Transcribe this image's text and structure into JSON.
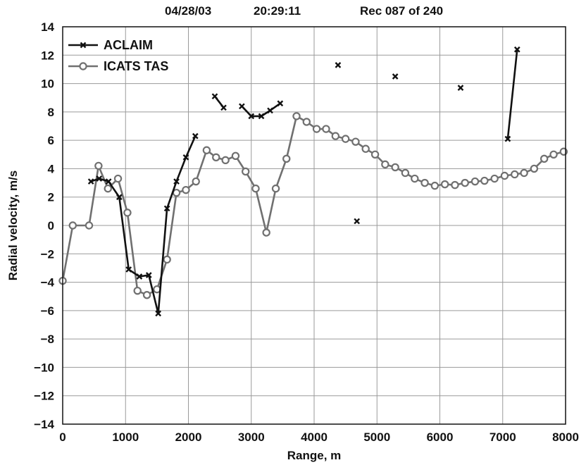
{
  "header": {
    "date": "04/28/03",
    "time": "20:29:11",
    "record": "Rec 087 of 240"
  },
  "chart_data": {
    "type": "line",
    "xlabel": "Range, m",
    "ylabel": "Radial velocity, m/s",
    "xlim": [
      0,
      8000
    ],
    "ylim": [
      -14,
      14
    ],
    "xticks": [
      0,
      1000,
      2000,
      3000,
      4000,
      5000,
      6000,
      7000,
      8000
    ],
    "yticks": [
      -14,
      -12,
      -10,
      -8,
      -6,
      -4,
      -2,
      0,
      2,
      4,
      6,
      8,
      10,
      12,
      14
    ],
    "grid": true,
    "legend_position": "top-left",
    "series": [
      {
        "name": "ACLAIM",
        "color": "#111111",
        "marker": "x",
        "segments": [
          [
            [
              450,
              3.1
            ],
            [
              580,
              3.3
            ],
            [
              730,
              3.1
            ],
            [
              900,
              2.0
            ],
            [
              1050,
              -3.1
            ],
            [
              1220,
              -3.6
            ],
            [
              1370,
              -3.5
            ],
            [
              1520,
              -6.2
            ],
            [
              1660,
              1.2
            ],
            [
              1810,
              3.1
            ],
            [
              1960,
              4.8
            ],
            [
              2110,
              6.3
            ]
          ],
          [
            [
              2420,
              9.1
            ],
            [
              2560,
              8.3
            ]
          ],
          [
            [
              2850,
              8.4
            ],
            [
              3000,
              7.7
            ],
            [
              3160,
              7.7
            ],
            [
              3300,
              8.1
            ],
            [
              3460,
              8.6
            ]
          ],
          [
            [
              4380,
              11.3
            ]
          ],
          [
            [
              4680,
              0.3
            ]
          ],
          [
            [
              5290,
              10.5
            ]
          ],
          [
            [
              6330,
              9.7
            ]
          ],
          [
            [
              7080,
              6.1
            ],
            [
              7230,
              12.4
            ]
          ]
        ]
      },
      {
        "name": "ICATS TAS",
        "color": "#707070",
        "marker": "o",
        "points": [
          [
            0,
            -3.9
          ],
          [
            160,
            0.0
          ],
          [
            420,
            0.0
          ],
          [
            570,
            4.2
          ],
          [
            720,
            2.6
          ],
          [
            880,
            3.3
          ],
          [
            1030,
            0.9
          ],
          [
            1190,
            -4.6
          ],
          [
            1340,
            -4.9
          ],
          [
            1500,
            -4.5
          ],
          [
            1660,
            -2.4
          ],
          [
            1810,
            2.3
          ],
          [
            1960,
            2.5
          ],
          [
            2120,
            3.1
          ],
          [
            2290,
            5.3
          ],
          [
            2440,
            4.8
          ],
          [
            2590,
            4.6
          ],
          [
            2750,
            4.9
          ],
          [
            2910,
            3.8
          ],
          [
            3070,
            2.6
          ],
          [
            3240,
            -0.5
          ],
          [
            3390,
            2.6
          ],
          [
            3560,
            4.7
          ],
          [
            3720,
            7.7
          ],
          [
            3880,
            7.3
          ],
          [
            4040,
            6.8
          ],
          [
            4190,
            6.8
          ],
          [
            4340,
            6.3
          ],
          [
            4500,
            6.1
          ],
          [
            4660,
            5.9
          ],
          [
            4820,
            5.4
          ],
          [
            4970,
            5.0
          ],
          [
            5130,
            4.3
          ],
          [
            5290,
            4.1
          ],
          [
            5450,
            3.7
          ],
          [
            5600,
            3.3
          ],
          [
            5760,
            3.0
          ],
          [
            5920,
            2.8
          ],
          [
            6080,
            2.9
          ],
          [
            6240,
            2.85
          ],
          [
            6400,
            3.0
          ],
          [
            6560,
            3.1
          ],
          [
            6710,
            3.15
          ],
          [
            6870,
            3.3
          ],
          [
            7030,
            3.5
          ],
          [
            7190,
            3.6
          ],
          [
            7340,
            3.7
          ],
          [
            7500,
            4.0
          ],
          [
            7660,
            4.7
          ],
          [
            7810,
            5.0
          ],
          [
            7970,
            5.2
          ]
        ]
      }
    ]
  }
}
